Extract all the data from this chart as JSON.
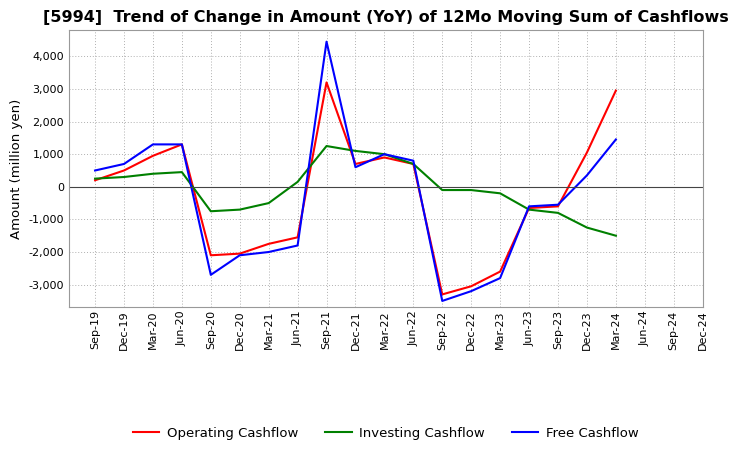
{
  "title": "[5994]  Trend of Change in Amount (YoY) of 12Mo Moving Sum of Cashflows",
  "ylabel": "Amount (million yen)",
  "x_labels": [
    "Sep-19",
    "Dec-19",
    "Mar-20",
    "Jun-20",
    "Sep-20",
    "Dec-20",
    "Mar-21",
    "Jun-21",
    "Sep-21",
    "Dec-21",
    "Mar-22",
    "Jun-22",
    "Sep-22",
    "Dec-22",
    "Mar-23",
    "Jun-23",
    "Sep-23",
    "Dec-23",
    "Mar-24",
    "Jun-24",
    "Sep-24",
    "Dec-24"
  ],
  "operating": [
    200,
    500,
    950,
    1300,
    -2100,
    -2050,
    -1750,
    -1550,
    3200,
    700,
    900,
    700,
    -3300,
    -3050,
    -2600,
    -650,
    -600,
    1050,
    2950,
    null,
    null,
    null
  ],
  "investing": [
    250,
    300,
    400,
    450,
    -750,
    -700,
    -500,
    150,
    1250,
    1100,
    1000,
    700,
    -100,
    -100,
    -200,
    -700,
    -800,
    -1250,
    -1500,
    null,
    null,
    null
  ],
  "free": [
    500,
    700,
    1300,
    1300,
    -2700,
    -2100,
    -2000,
    -1800,
    4450,
    600,
    1000,
    800,
    -3500,
    -3200,
    -2800,
    -600,
    -550,
    350,
    1450,
    null,
    null,
    null
  ],
  "operating_color": "#ff0000",
  "investing_color": "#008000",
  "free_color": "#0000ff",
  "ylim": [
    -3700,
    4800
  ],
  "yticks": [
    -3000,
    -2000,
    -1000,
    0,
    1000,
    2000,
    3000,
    4000
  ],
  "background_color": "#ffffff",
  "grid_color": "#b0b0b0",
  "title_fontsize": 11.5,
  "label_fontsize": 9.5,
  "tick_fontsize": 8
}
